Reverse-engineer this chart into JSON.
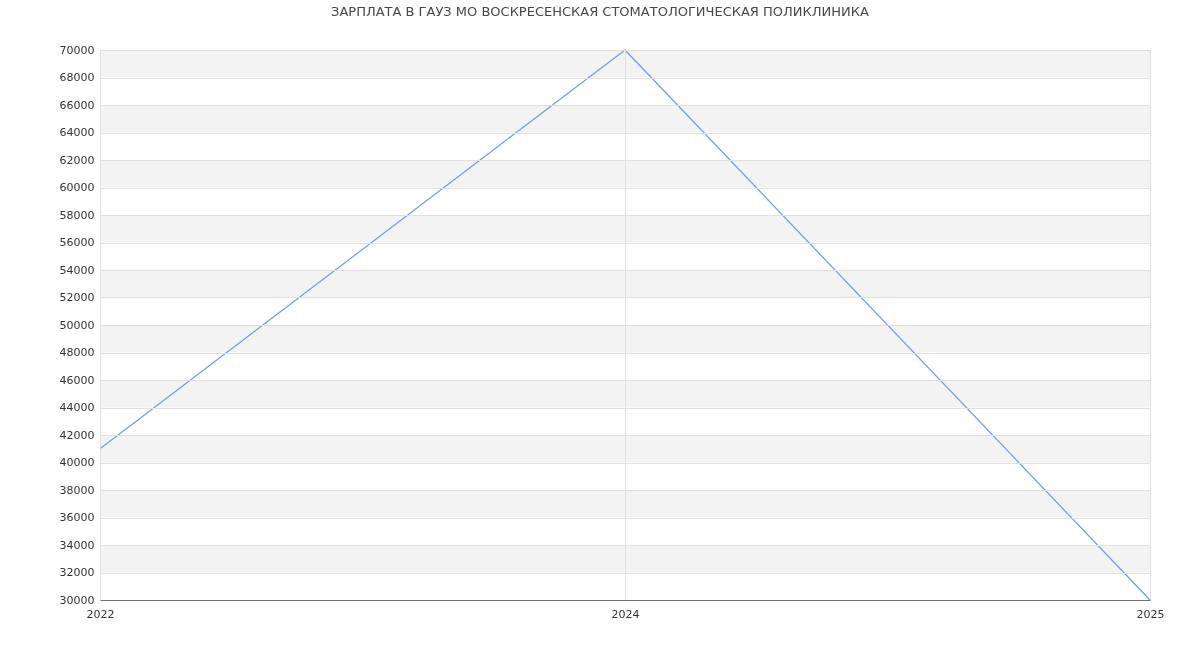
{
  "chart_data": {
    "type": "line",
    "title": "ЗАРПЛАТА В ГАУЗ МО ВОСКРЕСЕНСКАЯ СТОМАТОЛОГИЧЕСКАЯ ПОЛИКЛИНИКА",
    "categories": [
      "2022",
      "2024",
      "2025"
    ],
    "series": [
      {
        "color": "#6a9bf0",
        "values": [
          41000,
          70000,
          30000
        ]
      }
    ],
    "ylim": [
      30000,
      70000
    ],
    "yticks": [
      30000,
      32000,
      34000,
      36000,
      38000,
      40000,
      42000,
      44000,
      46000,
      48000,
      50000,
      52000,
      54000,
      56000,
      58000,
      60000,
      62000,
      64000,
      66000,
      68000,
      70000
    ],
    "grid": true,
    "marker": "none",
    "line_style": "solid",
    "bands": [
      {
        "axis": "y",
        "from": 32000,
        "to": 34000,
        "color": "#f3f3f3"
      },
      {
        "axis": "y",
        "from": 36000,
        "to": 38000,
        "color": "#f3f3f3"
      },
      {
        "axis": "y",
        "from": 40000,
        "to": 42000,
        "color": "#f3f3f3"
      },
      {
        "axis": "y",
        "from": 44000,
        "to": 46000,
        "color": "#f3f3f3"
      },
      {
        "axis": "y",
        "from": 48000,
        "to": 50000,
        "color": "#f3f3f3"
      },
      {
        "axis": "y",
        "from": 52000,
        "to": 54000,
        "color": "#f3f3f3"
      },
      {
        "axis": "y",
        "from": 56000,
        "to": 58000,
        "color": "#f3f3f3"
      },
      {
        "axis": "y",
        "from": 60000,
        "to": 62000,
        "color": "#f3f3f3"
      },
      {
        "axis": "y",
        "from": 64000,
        "to": 66000,
        "color": "#f3f3f3"
      },
      {
        "axis": "y",
        "from": 68000,
        "to": 70000,
        "color": "#f3f3f3"
      }
    ]
  }
}
